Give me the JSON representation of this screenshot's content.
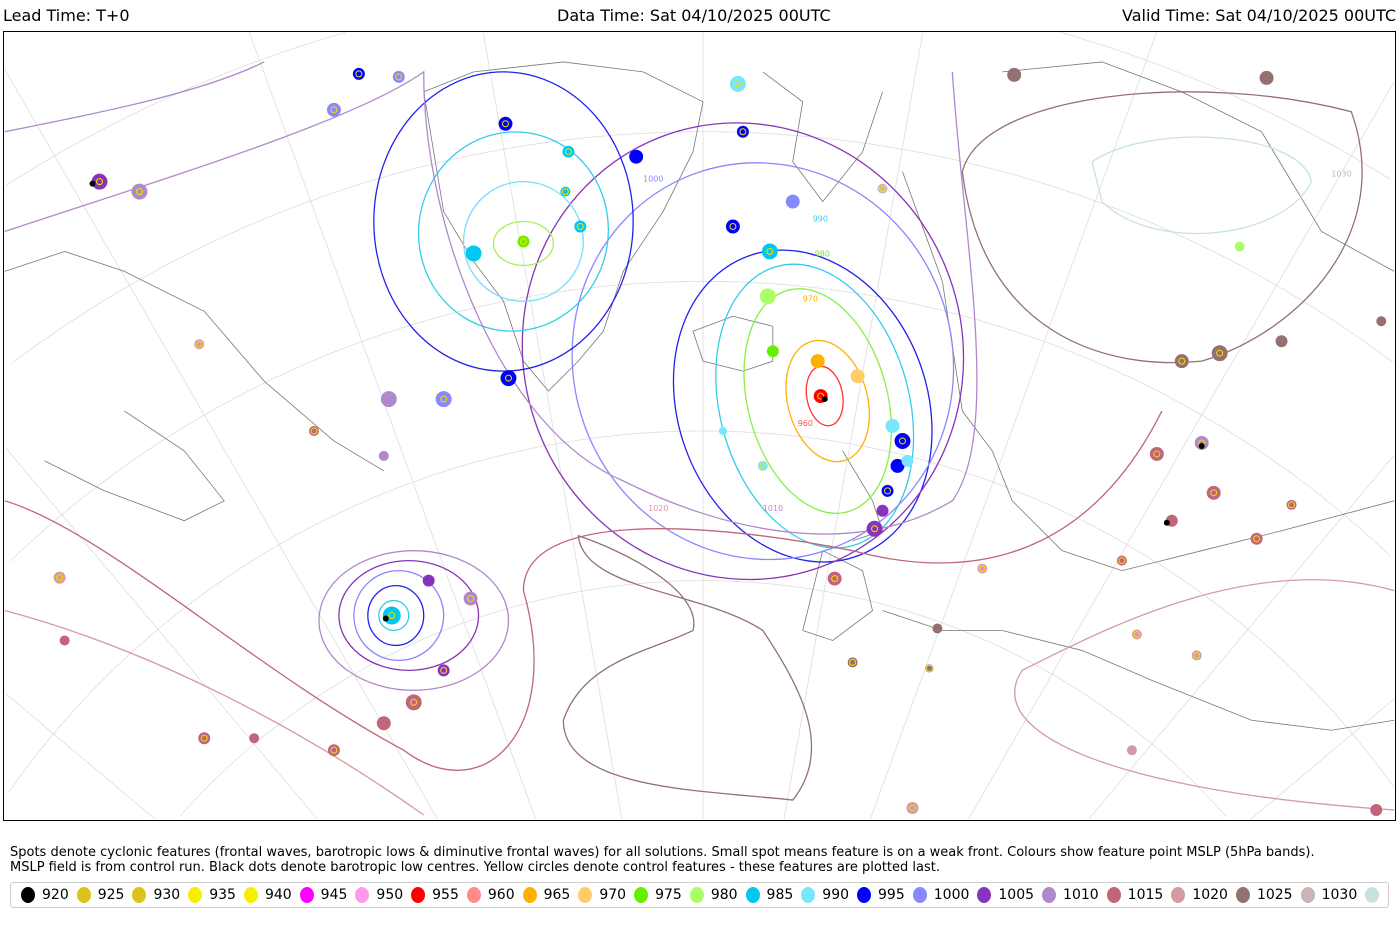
{
  "header": {
    "lead_time": "Lead Time: T+0",
    "data_time": "Data Time: Sat 04/10/2025 00UTC",
    "valid_time": "Valid Time: Sat 04/10/2025 00UTC"
  },
  "notes": [
    "Spots denote cyclonic features (frontal waves, barotropic lows & diminutive frontal waves) for all solutions. Small spot means feature is on a weak front. Colours show feature point MSLP (5hPa bands).",
    "MSLP field is from control run. Black dots denote barotropic low centres. Yellow circles denote control features - these features are plotted last."
  ],
  "legend": [
    {
      "label": "920",
      "color": "#000000"
    },
    {
      "label": "925",
      "color": "#dcc31c"
    },
    {
      "label": "930",
      "color": "#dcc31c"
    },
    {
      "label": "935",
      "color": "#f5f000"
    },
    {
      "label": "940",
      "color": "#f5f000"
    },
    {
      "label": "945",
      "color": "#ff00ff"
    },
    {
      "label": "950",
      "color": "#ff99ee"
    },
    {
      "label": "955",
      "color": "#ff0000"
    },
    {
      "label": "960",
      "color": "#ff8c8c"
    },
    {
      "label": "965",
      "color": "#ffb000"
    },
    {
      "label": "970",
      "color": "#ffcc66"
    },
    {
      "label": "975",
      "color": "#66ee00"
    },
    {
      "label": "980",
      "color": "#aaff66"
    },
    {
      "label": "985",
      "color": "#00c8f0"
    },
    {
      "label": "990",
      "color": "#77e6ff"
    },
    {
      "label": "995",
      "color": "#0000ff"
    },
    {
      "label": "1000",
      "color": "#8888ff"
    },
    {
      "label": "1005",
      "color": "#8833bb"
    },
    {
      "label": "1010",
      "color": "#b088cc"
    },
    {
      "label": "1015",
      "color": "#c0657a"
    },
    {
      "label": "1020",
      "color": "#d49aa6"
    },
    {
      "label": "1025",
      "color": "#957070"
    },
    {
      "label": "1030",
      "color": "#ccb4b4"
    },
    {
      "label": "",
      "color": "#c8e2e2"
    }
  ],
  "contour_labels": [
    "960",
    "970",
    "980",
    "990",
    "1000",
    "1010",
    "1020",
    "1030"
  ]
}
